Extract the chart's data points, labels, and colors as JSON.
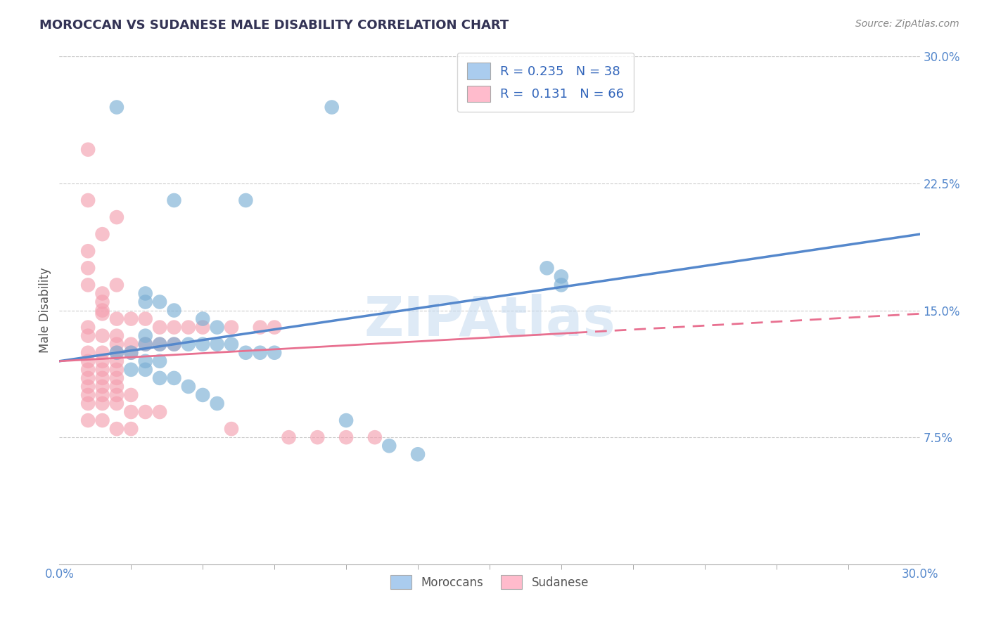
{
  "title": "MOROCCAN VS SUDANESE MALE DISABILITY CORRELATION CHART",
  "source": "Source: ZipAtlas.com",
  "ylabel": "Male Disability",
  "xlim": [
    0.0,
    0.3
  ],
  "ylim": [
    0.0,
    0.3
  ],
  "xtick_positions": [
    0.0,
    0.3
  ],
  "xtick_labels": [
    "0.0%",
    "30.0%"
  ],
  "xtick_minor": [
    0.025,
    0.05,
    0.075,
    0.1,
    0.125,
    0.15,
    0.175,
    0.2,
    0.225,
    0.25,
    0.275
  ],
  "yticks_right": [
    0.075,
    0.15,
    0.225,
    0.3
  ],
  "ytick_labels_right": [
    "7.5%",
    "15.0%",
    "22.5%",
    "30.0%"
  ],
  "moroccan_color": "#7BAFD4",
  "sudanese_color": "#F4A0B0",
  "moroccan_R": 0.235,
  "moroccan_N": 38,
  "sudanese_R": 0.131,
  "sudanese_N": 66,
  "watermark": "ZIPAtlas",
  "background_color": "#ffffff",
  "grid_color": "#cccccc",
  "moroccan_scatter": [
    [
      0.02,
      0.27
    ],
    [
      0.095,
      0.27
    ],
    [
      0.065,
      0.215
    ],
    [
      0.04,
      0.215
    ],
    [
      0.17,
      0.175
    ],
    [
      0.175,
      0.17
    ],
    [
      0.175,
      0.165
    ],
    [
      0.03,
      0.16
    ],
    [
      0.03,
      0.155
    ],
    [
      0.035,
      0.155
    ],
    [
      0.04,
      0.15
    ],
    [
      0.05,
      0.145
    ],
    [
      0.055,
      0.14
    ],
    [
      0.03,
      0.135
    ],
    [
      0.03,
      0.13
    ],
    [
      0.035,
      0.13
    ],
    [
      0.04,
      0.13
    ],
    [
      0.045,
      0.13
    ],
    [
      0.05,
      0.13
    ],
    [
      0.055,
      0.13
    ],
    [
      0.06,
      0.13
    ],
    [
      0.065,
      0.125
    ],
    [
      0.07,
      0.125
    ],
    [
      0.075,
      0.125
    ],
    [
      0.02,
      0.125
    ],
    [
      0.025,
      0.125
    ],
    [
      0.03,
      0.12
    ],
    [
      0.035,
      0.12
    ],
    [
      0.025,
      0.115
    ],
    [
      0.03,
      0.115
    ],
    [
      0.035,
      0.11
    ],
    [
      0.04,
      0.11
    ],
    [
      0.045,
      0.105
    ],
    [
      0.05,
      0.1
    ],
    [
      0.055,
      0.095
    ],
    [
      0.1,
      0.085
    ],
    [
      0.115,
      0.07
    ],
    [
      0.125,
      0.065
    ]
  ],
  "sudanese_scatter": [
    [
      0.01,
      0.245
    ],
    [
      0.01,
      0.215
    ],
    [
      0.02,
      0.205
    ],
    [
      0.015,
      0.195
    ],
    [
      0.01,
      0.185
    ],
    [
      0.01,
      0.175
    ],
    [
      0.02,
      0.165
    ],
    [
      0.01,
      0.165
    ],
    [
      0.015,
      0.16
    ],
    [
      0.015,
      0.155
    ],
    [
      0.015,
      0.15
    ],
    [
      0.015,
      0.148
    ],
    [
      0.02,
      0.145
    ],
    [
      0.025,
      0.145
    ],
    [
      0.03,
      0.145
    ],
    [
      0.035,
      0.14
    ],
    [
      0.04,
      0.14
    ],
    [
      0.045,
      0.14
    ],
    [
      0.05,
      0.14
    ],
    [
      0.06,
      0.14
    ],
    [
      0.07,
      0.14
    ],
    [
      0.075,
      0.14
    ],
    [
      0.01,
      0.14
    ],
    [
      0.01,
      0.135
    ],
    [
      0.015,
      0.135
    ],
    [
      0.02,
      0.135
    ],
    [
      0.02,
      0.13
    ],
    [
      0.025,
      0.13
    ],
    [
      0.03,
      0.13
    ],
    [
      0.035,
      0.13
    ],
    [
      0.04,
      0.13
    ],
    [
      0.01,
      0.125
    ],
    [
      0.015,
      0.125
    ],
    [
      0.02,
      0.125
    ],
    [
      0.025,
      0.125
    ],
    [
      0.01,
      0.12
    ],
    [
      0.015,
      0.12
    ],
    [
      0.02,
      0.12
    ],
    [
      0.01,
      0.115
    ],
    [
      0.015,
      0.115
    ],
    [
      0.02,
      0.115
    ],
    [
      0.01,
      0.11
    ],
    [
      0.015,
      0.11
    ],
    [
      0.02,
      0.11
    ],
    [
      0.01,
      0.105
    ],
    [
      0.015,
      0.105
    ],
    [
      0.02,
      0.105
    ],
    [
      0.01,
      0.1
    ],
    [
      0.015,
      0.1
    ],
    [
      0.02,
      0.1
    ],
    [
      0.025,
      0.1
    ],
    [
      0.01,
      0.095
    ],
    [
      0.015,
      0.095
    ],
    [
      0.02,
      0.095
    ],
    [
      0.025,
      0.09
    ],
    [
      0.03,
      0.09
    ],
    [
      0.035,
      0.09
    ],
    [
      0.01,
      0.085
    ],
    [
      0.015,
      0.085
    ],
    [
      0.02,
      0.08
    ],
    [
      0.025,
      0.08
    ],
    [
      0.06,
      0.08
    ],
    [
      0.08,
      0.075
    ],
    [
      0.09,
      0.075
    ],
    [
      0.1,
      0.075
    ],
    [
      0.11,
      0.075
    ]
  ]
}
